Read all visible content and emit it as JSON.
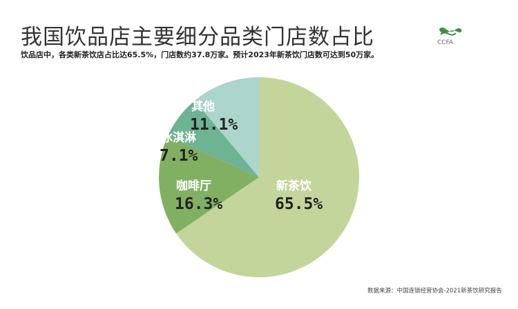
{
  "header": {
    "title": "我国饮品店主要细分品类门店数占比",
    "subtitle": "饮品店中，各类新茶饮店占比达65.5%，门店数约37.8万家。预计2023年新茶饮门店数可达到50万家。",
    "logo_text": "CCFA"
  },
  "footer": {
    "source": "数据来源：中国连锁经营协会-2021新茶饮研究报告"
  },
  "chart_data": {
    "type": "pie",
    "title": "我国饮品店主要细分品类门店数占比",
    "start": "12 o'clock, clockwise",
    "slices": [
      {
        "label": "新茶饮",
        "value": 65.5,
        "display": "65.5%",
        "color": "#c3d59b"
      },
      {
        "label": "咖啡厅",
        "value": 16.3,
        "display": "16.3%",
        "color": "#82b062"
      },
      {
        "label": "冰淇淋",
        "value": 7.1,
        "display": "7.1%",
        "color": "#6db394"
      },
      {
        "label": "其他",
        "value": 11.1,
        "display": "11.1%",
        "color": "#acd5cb"
      }
    ]
  }
}
